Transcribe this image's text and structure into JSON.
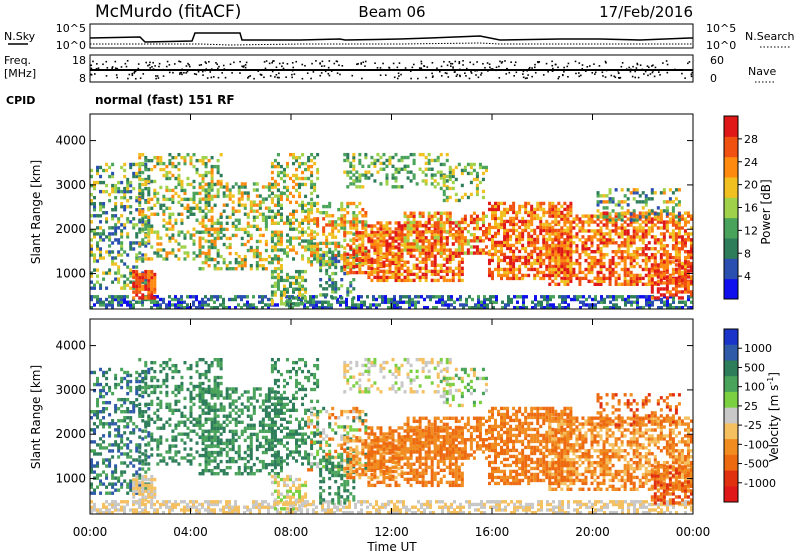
{
  "header": {
    "station": "McMurdo (fitACF)",
    "beam": "Beam 06",
    "date": "17/Feb/2016"
  },
  "nsky_panel": {
    "left_label": "N.Sky",
    "left_ticks": [
      "10^5",
      "10^0"
    ],
    "right_ticks": [
      "10^5",
      "10^0"
    ],
    "right_label": "N.Search"
  },
  "freq_panel": {
    "left_label_1": "Freq.",
    "left_label_2": "[MHz]",
    "left_ticks": [
      "18",
      "8"
    ],
    "right_ticks": [
      "60",
      "0"
    ],
    "right_label": "Nave"
  },
  "cpid": {
    "label": "CPID",
    "value": "normal (fast) 151 RF"
  },
  "chart_data": [
    {
      "type": "heatmap",
      "panel": "power",
      "ylabel": "Slant Range [km]",
      "yticks": [
        "1000",
        "2000",
        "3000",
        "4000"
      ],
      "ylim": [
        200,
        4600
      ],
      "colorbar": {
        "label": "Power [dB]",
        "ticks": [
          "4",
          "8",
          "12",
          "16",
          "20",
          "24",
          "28"
        ],
        "colors": [
          "#1010ee",
          "#2a4fb0",
          "#2e7d5a",
          "#4aa35a",
          "#9fd24a",
          "#f0c020",
          "#ff8a10",
          "#f05010",
          "#e01818"
        ]
      }
    },
    {
      "type": "heatmap",
      "panel": "velocity",
      "ylabel": "Slant Range [km]",
      "yticks": [
        "1000",
        "2000",
        "3000",
        "4000"
      ],
      "ylim": [
        200,
        4600
      ],
      "colorbar": {
        "label": "Velocity [m s",
        "label_sup": "-1",
        "label_end": "]",
        "ticks": [
          "1000",
          "500",
          "100",
          "25",
          "-25",
          "-100",
          "-500",
          "-1000"
        ],
        "colors": [
          "#1a33c8",
          "#2e5aa8",
          "#2e7d5a",
          "#4aa35a",
          "#7ad040",
          "#c8c8c8",
          "#f5c060",
          "#f08c20",
          "#ee6a10",
          "#e03010",
          "#e01818"
        ]
      }
    }
  ],
  "x_axis": {
    "ticks": [
      "00:00",
      "04:00",
      "08:00",
      "12:00",
      "16:00",
      "20:00",
      "00:00"
    ],
    "label": "Time UT"
  }
}
